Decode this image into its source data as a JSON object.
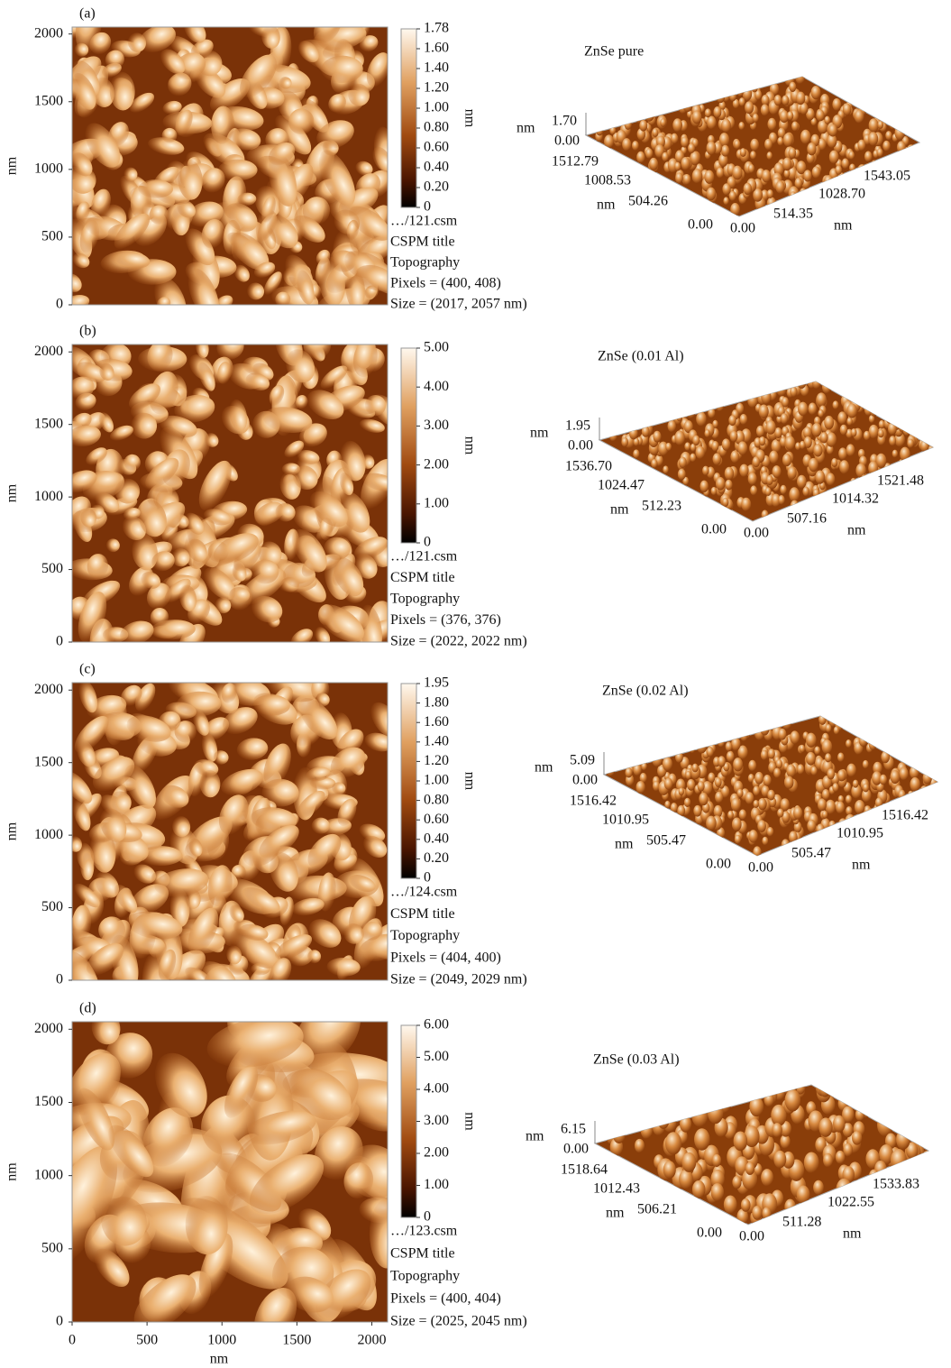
{
  "panels": [
    {
      "label": "(a)",
      "y_axis_ticks": [
        "2000",
        "1500",
        "1000",
        "500",
        "0"
      ],
      "y_axis_label": "nm",
      "colorbar_ticks": [
        "1.78",
        "1.60",
        "1.40",
        "1.20",
        "1.00",
        "0.80",
        "0.60",
        "0.40",
        "0.20",
        "0"
      ],
      "colorbar_label": "nm",
      "info": [
        "…/121.csm",
        "CSPM title",
        "Topography",
        "Pixels = (400, 408)",
        "Size = (2017, 2057 nm)"
      ],
      "surface_title": "ZnSe pure",
      "surface": {
        "z_unit": "nm",
        "z_max": "1.70",
        "z_min": "0.00",
        "y_ticks": [
          "1512.79",
          "1008.53",
          "504.26",
          "0.00"
        ],
        "y_unit": "nm",
        "x_ticks": [
          "0.00",
          "514.35",
          "1028.70",
          "1543.05"
        ],
        "x_unit": "nm"
      }
    },
    {
      "label": "(b)",
      "y_axis_ticks": [
        "2000",
        "1500",
        "1000",
        "500",
        "0"
      ],
      "y_axis_label": "nm",
      "colorbar_ticks": [
        "5.00",
        "4.00",
        "3.00",
        "2.00",
        "1.00",
        "0"
      ],
      "colorbar_label": "nm",
      "info": [
        "…/121.csm",
        "CSPM title",
        "Topography",
        "Pixels = (376, 376)",
        "Size = (2022, 2022 nm)"
      ],
      "surface_title": "ZnSe (0.01 Al)",
      "surface": {
        "z_unit": "nm",
        "z_max": "1.95",
        "z_min": "0.00",
        "y_ticks": [
          "1536.70",
          "1024.47",
          "512.23",
          "0.00"
        ],
        "y_unit": "nm",
        "x_ticks": [
          "0.00",
          "507.16",
          "1014.32",
          "1521.48"
        ],
        "x_unit": "nm"
      }
    },
    {
      "label": "(c)",
      "y_axis_ticks": [
        "2000",
        "1500",
        "1000",
        "500",
        "0"
      ],
      "y_axis_label": "nm",
      "colorbar_ticks": [
        "1.95",
        "1.80",
        "1.60",
        "1.40",
        "1.20",
        "1.00",
        "0.80",
        "0.60",
        "0.40",
        "0.20",
        "0"
      ],
      "colorbar_label": "nm",
      "info": [
        "…/124.csm",
        "CSPM title",
        "Topography",
        "Pixels = (404, 400)",
        "Size = (2049, 2029 nm)"
      ],
      "surface_title": "ZnSe (0.02 Al)",
      "surface": {
        "z_unit": "nm",
        "z_max": "5.09",
        "z_min": "0.00",
        "y_ticks": [
          "1516.42",
          "1010.95",
          "505.47",
          "0.00"
        ],
        "y_unit": "nm",
        "x_ticks": [
          "0.00",
          "505.47",
          "1010.95",
          "1516.42"
        ],
        "x_unit": "nm"
      }
    },
    {
      "label": "(d)",
      "y_axis_ticks": [
        "2000",
        "1500",
        "1000",
        "500",
        "0"
      ],
      "y_axis_label": "nm",
      "colorbar_ticks": [
        "6.00",
        "5.00",
        "4.00",
        "3.00",
        "2.00",
        "1.00",
        "0"
      ],
      "colorbar_label": "nm",
      "info": [
        "…/123.csm",
        "CSPM title",
        "Topography",
        "Pixels = (400, 404)",
        "Size = (2025, 2045 nm)"
      ],
      "surface_title": "ZnSe (0.03 Al)",
      "surface": {
        "z_unit": "nm",
        "z_max": "6.15",
        "z_min": "0.00",
        "y_ticks": [
          "1518.64",
          "1012.43",
          "506.21",
          "0.00"
        ],
        "y_unit": "nm",
        "x_ticks": [
          "0.00",
          "511.28",
          "1022.55",
          "1533.83"
        ],
        "x_unit": "nm"
      }
    }
  ],
  "x_axis_ticks": [
    "0",
    "500",
    "1000",
    "1500",
    "2000"
  ],
  "x_axis_label": "nm"
}
